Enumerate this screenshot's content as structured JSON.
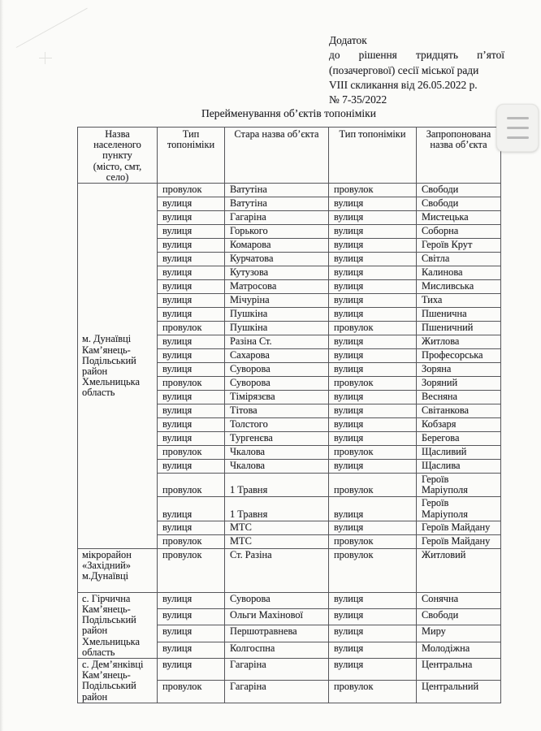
{
  "appendix": {
    "lines": [
      "Додаток",
      "до рішення тридцять п’ятої",
      "(позачергової) сесії міської ради",
      "VIII скликання від  26.05.2022 р.",
      "№ 7-35/2022"
    ]
  },
  "title": "Перейменування об’єктів топоніміки",
  "table": {
    "headers": [
      "Назва\nнаселеного\nпункту\n(місто, смт,\nсело)",
      "Тип\nтопоніміки",
      "Стара назва об’єкта",
      "Тип топоніміки",
      "Запропонована\nназва об’єкта"
    ],
    "sections": [
      {
        "location": "м. Дунаївці\nКам’янець-\nПодільський\nрайон\nХмельницька\nобласть",
        "rows": [
          [
            "провулок",
            "Ватутіна",
            "провулок",
            "Свободи"
          ],
          [
            "вулиця",
            "Ватутіна",
            "вулиця",
            "Свободи"
          ],
          [
            "вулиця",
            "Гагаріна",
            "вулиця",
            "Мистецька"
          ],
          [
            "вулиця",
            "Горького",
            "вулиця",
            "Соборна"
          ],
          [
            "вулиця",
            "Комарова",
            "вулиця",
            "Героїв Крут"
          ],
          [
            "вулиця",
            "Курчатова",
            "вулиця",
            "Світла"
          ],
          [
            "вулиця",
            "Кутузова",
            "вулиця",
            "Калинова"
          ],
          [
            "вулиця",
            "Матросова",
            "вулиця",
            "Мисливська"
          ],
          [
            "вулиця",
            "Мічуріна",
            "вулиця",
            "Тиха"
          ],
          [
            "вулиця",
            "Пушкіна",
            "вулиця",
            "Пшенична"
          ],
          [
            "провулок",
            "Пушкіна",
            "провулок",
            "Пшеничний"
          ],
          [
            "вулиця",
            "Разіна Ст.",
            "вулиця",
            "Житлова"
          ],
          [
            "вулиця",
            "Сахарова",
            "вулиця",
            "Професорська"
          ],
          [
            "вулиця",
            "Суворова",
            "вулиця",
            "Зоряна"
          ],
          [
            "провулок",
            "Суворова",
            "провулок",
            "Зоряний"
          ],
          [
            "вулиця",
            "Тімірязєва",
            "вулиця",
            "Весняна"
          ],
          [
            "вулиця",
            "Тітова",
            "вулиця",
            "Світанкова"
          ],
          [
            "вулиця",
            "Толстого",
            "вулиця",
            "Кобзаря"
          ],
          [
            "вулиця",
            "Тургенєва",
            "вулиця",
            "Берегова"
          ],
          [
            "провулок",
            "Чкалова",
            "провулок",
            "Щасливий"
          ],
          [
            "вулиця",
            "Чкалова",
            "вулиця",
            "Щаслива"
          ],
          [
            "провулок",
            "1 Травня",
            "провулок",
            "Героїв\nМаріуполя"
          ],
          [
            "вулиця",
            "1 Травня",
            "вулиця",
            "Героїв\nМаріуполя"
          ],
          [
            "вулиця",
            "МТС",
            "вулиця",
            "Героїв Майдану"
          ],
          [
            "провулок",
            "МТС",
            "провулок",
            "Героїв Майдану"
          ]
        ]
      },
      {
        "location": "мікрорайон\n«Західний»\nм.Дунаївці",
        "rows": [
          [
            "провулок",
            "Ст. Разіна",
            "провулок",
            "Житловий"
          ]
        ]
      },
      {
        "location": "с. Гірчична\nКам’янець-\nПодільський\nрайон\nХмельницька\nобласть",
        "rows": [
          [
            "вулиця",
            "Суворова",
            "вулиця",
            "Сонячна"
          ],
          [
            "вулиця",
            "Ольги Махінової",
            "вулиця",
            "Свободи"
          ],
          [
            "вулиця",
            "Першотравнева",
            "вулиця",
            "Миру"
          ],
          [
            "вулиця",
            "Колгоспна",
            "вулиця",
            "Молодіжна"
          ]
        ]
      },
      {
        "location": "с. Дем’янківці\nКам’янець-\nПодільський\nрайон",
        "rows": [
          [
            "вулиця",
            "Гагаріна",
            "вулиця",
            "Центральна"
          ],
          [
            "провулок",
            "Гагаріна",
            "провулок",
            "Центральний"
          ]
        ]
      }
    ]
  },
  "menu": {
    "icon": "hamburger-menu"
  },
  "colors": {
    "paper": "#fbfbf9",
    "ink": "#232327",
    "border": "#56565a",
    "menu_bg": "#f2f2f0",
    "menu_line": "#b9b9b9"
  }
}
